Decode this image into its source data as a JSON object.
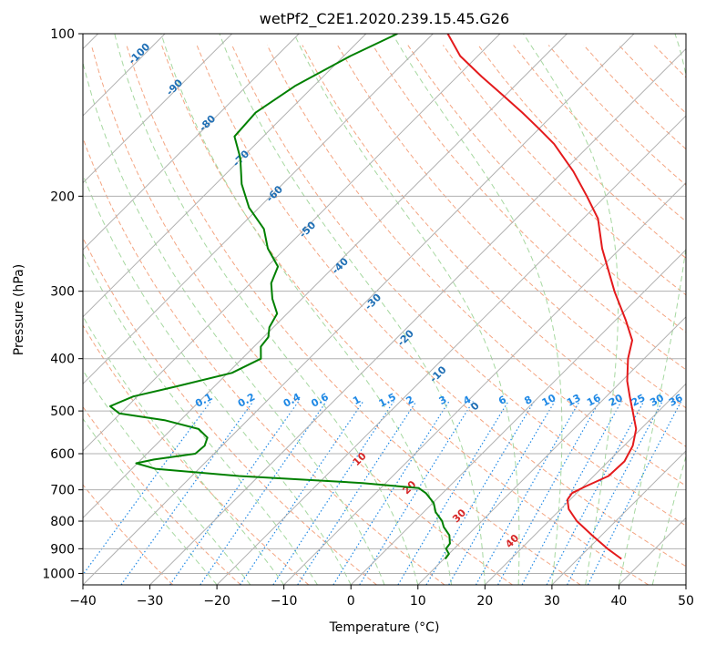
{
  "chart_data": {
    "type": "line",
    "subtype": "skew-T log-P diagram",
    "title": "wetPf2_C2E1.2020.239.15.45.G26",
    "xlabel": "Temperature (°C)",
    "ylabel": "Pressure (hPa)",
    "xlim": [
      -40,
      50
    ],
    "ylim": [
      1050,
      100
    ],
    "y_scale": "log",
    "x_ticks": [
      "−40",
      "−30",
      "−20",
      "−10",
      "0",
      "10",
      "20",
      "30",
      "40",
      "50"
    ],
    "x_tick_values": [
      -40,
      -30,
      -20,
      -10,
      0,
      10,
      20,
      30,
      40,
      50
    ],
    "y_ticks": [
      "100",
      "200",
      "300",
      "400",
      "500",
      "600",
      "700",
      "800",
      "900",
      "1000"
    ],
    "y_tick_values": [
      100,
      200,
      300,
      400,
      500,
      600,
      700,
      800,
      900,
      1000
    ],
    "grid": true,
    "series": [
      {
        "role": "temperature",
        "color": "#e41a1c",
        "points": [
          [
            940,
            36.5
          ],
          [
            900,
            32.9
          ],
          [
            850,
            28.6
          ],
          [
            800,
            24.2
          ],
          [
            760,
            21.2
          ],
          [
            730,
            19.6
          ],
          [
            710,
            19.3
          ],
          [
            690,
            20.3
          ],
          [
            660,
            22.2
          ],
          [
            620,
            22.4
          ],
          [
            580,
            21.3
          ],
          [
            540,
            19.3
          ],
          [
            500,
            16.1
          ],
          [
            470,
            13.5
          ],
          [
            440,
            10.8
          ],
          [
            400,
            7.6
          ],
          [
            370,
            5.5
          ],
          [
            340,
            1.6
          ],
          [
            300,
            -4.5
          ],
          [
            250,
            -12.7
          ],
          [
            220,
            -17.8
          ],
          [
            200,
            -22.8
          ],
          [
            180,
            -28.5
          ],
          [
            160,
            -35.5
          ],
          [
            150,
            -40.0
          ],
          [
            140,
            -44.9
          ],
          [
            130,
            -50.4
          ],
          [
            120,
            -56.4
          ],
          [
            110,
            -62.6
          ],
          [
            100,
            -67.8
          ]
        ]
      },
      {
        "role": "dewpoint",
        "color": "#008000",
        "points": [
          [
            940,
            10.2
          ],
          [
            920,
            10.0
          ],
          [
            900,
            8.8
          ],
          [
            880,
            8.6
          ],
          [
            850,
            7.3
          ],
          [
            820,
            5.2
          ],
          [
            800,
            4.1
          ],
          [
            770,
            1.8
          ],
          [
            740,
            0.1
          ],
          [
            710,
            -2.5
          ],
          [
            695,
            -4.3
          ],
          [
            680,
            -13.5
          ],
          [
            660,
            -33.0
          ],
          [
            640,
            -46.5
          ],
          [
            625,
            -50.2
          ],
          [
            615,
            -48.1
          ],
          [
            600,
            -42.8
          ],
          [
            580,
            -42.6
          ],
          [
            560,
            -43.4
          ],
          [
            540,
            -46.0
          ],
          [
            520,
            -52.4
          ],
          [
            505,
            -60.2
          ],
          [
            490,
            -62.6
          ],
          [
            470,
            -60.6
          ],
          [
            450,
            -55.6
          ],
          [
            425,
            -49.4
          ],
          [
            400,
            -47.2
          ],
          [
            380,
            -49.0
          ],
          [
            365,
            -49.3
          ],
          [
            350,
            -50.6
          ],
          [
            330,
            -51.5
          ],
          [
            310,
            -54.4
          ],
          [
            290,
            -56.9
          ],
          [
            270,
            -58.4
          ],
          [
            250,
            -62.6
          ],
          [
            230,
            -66.1
          ],
          [
            210,
            -71.5
          ],
          [
            190,
            -76.1
          ],
          [
            170,
            -80.2
          ],
          [
            155,
            -84.3
          ],
          [
            140,
            -84.7
          ],
          [
            125,
            -82.8
          ],
          [
            110,
            -79.0
          ],
          [
            100,
            -75.3
          ]
        ]
      }
    ],
    "background_lines": {
      "isotherms": "gray solid, skewed",
      "dry_adiabats": "light red dashed",
      "moist_adiabats": "light green dashed",
      "mixing_ratio": "blue dotted"
    },
    "mixing_ratio_labels": [
      "0.1",
      "0.2",
      "0.4",
      "0.6",
      "1",
      "1.5",
      "2",
      "3",
      "4",
      "6",
      "8",
      "10",
      "13",
      "16",
      "20",
      "25",
      "30",
      "36"
    ],
    "wetbulb_labels": [
      "-100",
      "-90",
      "-80",
      "-70",
      "-60",
      "-50",
      "-40",
      "-30",
      "-20",
      "-10",
      "0"
    ],
    "dry_adiabat_labels": [
      "10",
      "20",
      "30",
      "40"
    ],
    "colors": {
      "isotherm": "#b0b0b0",
      "dry_adiabat": "#f4a582",
      "moist_adiabat": "#a6d8a0",
      "mixing_ratio": "#1e88e5",
      "wetbulb_label": "#1f6fb5",
      "dry_adiabat_label": "#d62728"
    }
  }
}
